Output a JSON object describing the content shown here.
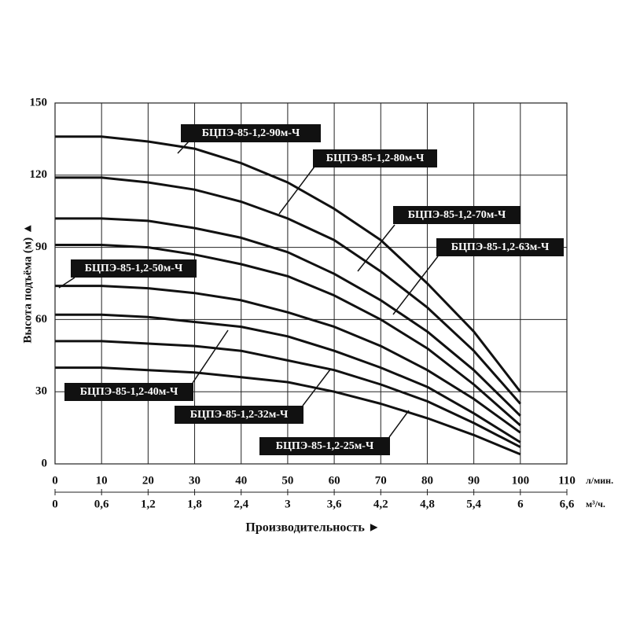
{
  "chart_data": {
    "type": "line",
    "ylabel": "Высота подъёма (м) ▲",
    "xlabel": "Производительность ►",
    "xunit": "л/мин.",
    "x2unit": "м³/ч.",
    "x": [
      0,
      10,
      20,
      30,
      40,
      50,
      60,
      70,
      80,
      90,
      100
    ],
    "series": [
      {
        "name": "БЦПЭ-85-1,2-90м-Ч",
        "color": "#111111",
        "values": [
          136,
          136,
          134,
          131,
          125,
          117,
          106,
          93,
          75,
          55,
          30
        ]
      },
      {
        "name": "БЦПЭ-85-1,2-80м-Ч",
        "color": "#111111",
        "values": [
          119,
          119,
          117,
          114,
          109,
          102,
          93,
          80,
          65,
          47,
          25
        ]
      },
      {
        "name": "БЦПЭ-85-1,2-70м-Ч",
        "color": "#111111",
        "values": [
          102,
          102,
          101,
          98,
          94,
          88,
          79,
          68,
          55,
          39,
          20
        ]
      },
      {
        "name": "БЦПЭ-85-1,2-63м-Ч",
        "color": "#111111",
        "values": [
          91,
          91,
          90,
          87,
          83,
          78,
          70,
          60,
          48,
          33,
          16
        ]
      },
      {
        "name": "БЦПЭ-85-1,2-50м-Ч",
        "color": "#111111",
        "values": [
          74,
          74,
          73,
          71,
          68,
          63,
          57,
          49,
          39,
          27,
          13
        ]
      },
      {
        "name": "БЦПЭ-85-1,2-40м-Ч",
        "color": "#111111",
        "values": [
          62,
          62,
          61,
          59,
          57,
          53,
          47,
          40,
          32,
          21,
          9
        ]
      },
      {
        "name": "БЦПЭ-85-1,2-32м-Ч",
        "color": "#111111",
        "values": [
          51,
          51,
          50,
          49,
          47,
          43,
          39,
          33,
          26,
          17,
          7
        ]
      },
      {
        "name": "БЦПЭ-85-1,2-25м-Ч",
        "color": "#111111",
        "values": [
          40,
          40,
          39,
          38,
          36,
          34,
          30,
          25,
          19,
          12,
          4
        ]
      }
    ],
    "xlim": [
      0,
      110
    ],
    "xticks": [
      0,
      10,
      20,
      30,
      40,
      50,
      60,
      70,
      80,
      90,
      100,
      110
    ],
    "x2lim": [
      0,
      6.6
    ],
    "x2ticks": [
      0,
      {
        "value": 0.6,
        "label": "0,6"
      },
      {
        "value": 1.2,
        "label": "1,2"
      },
      {
        "value": 1.8,
        "label": "1,8"
      },
      {
        "value": 2.4,
        "label": "2,4"
      },
      3,
      {
        "value": 3.6,
        "label": "3,6"
      },
      {
        "value": 4.2,
        "label": "4,2"
      },
      {
        "value": 4.8,
        "label": "4,8"
      },
      {
        "value": 5.4,
        "label": "5,4"
      },
      6,
      {
        "value": 6.6,
        "label": "6,6"
      }
    ],
    "ylim": [
      0,
      150
    ],
    "yticks": [
      0,
      30,
      60,
      90,
      120,
      150
    ],
    "grid": true
  }
}
